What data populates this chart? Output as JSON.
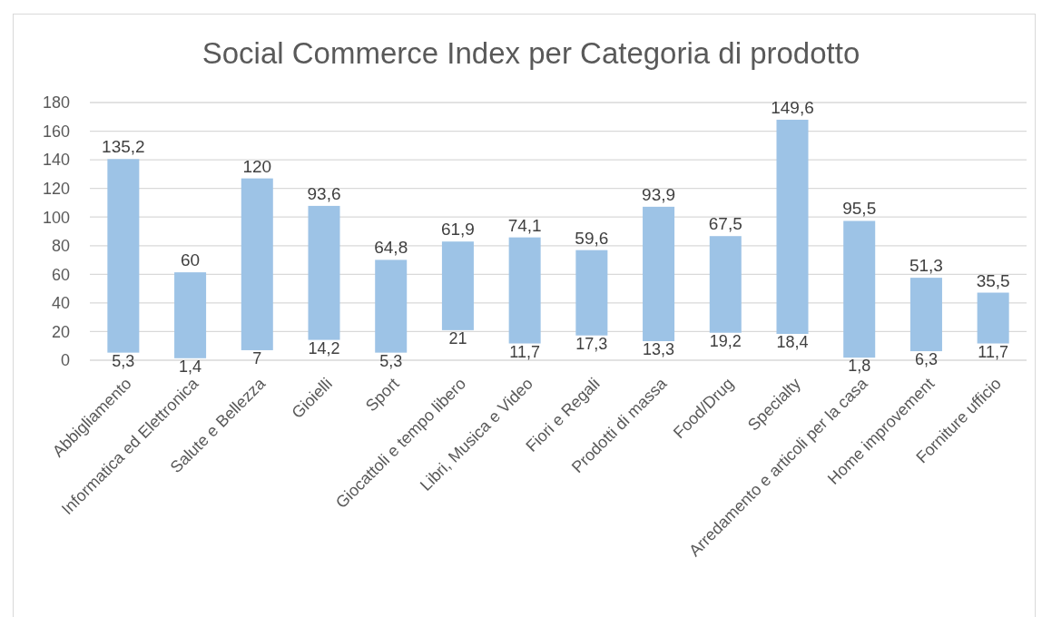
{
  "chart_data": {
    "type": "bar",
    "title": "Social Commerce Index per Categoria di prodotto",
    "categories": [
      "Abbigliamento",
      "Informatica ed Elettronica",
      "Salute e Bellezza",
      "Gioielli",
      "Sport",
      "Giocattoli e tempo libero",
      "Libri, Musica e Video",
      "Fiori e Regali",
      "Prodotti di massa",
      "Food/Drug",
      "Specialty",
      "Arredamento e articoli per la casa",
      "Home improvement",
      "Forniture ufficio"
    ],
    "values": [
      135.2,
      60,
      120,
      93.6,
      64.8,
      61.9,
      74.1,
      59.6,
      93.9,
      67.5,
      149.6,
      95.5,
      51.3,
      35.5
    ],
    "value_labels": [
      "135,2",
      "60",
      "120",
      "93,6",
      "64,8",
      "61,9",
      "74,1",
      "59,6",
      "93,9",
      "67,5",
      "149,6",
      "95,5",
      "51,3",
      "35,5"
    ],
    "base": [
      5.3,
      1.4,
      7,
      14.2,
      5.3,
      21,
      11.7,
      17.3,
      13.3,
      19.2,
      18.4,
      1.8,
      6.3,
      11.7
    ],
    "annotations": [
      {
        "text": "5,3",
        "x": "Abbigliamento",
        "y": 5.3
      },
      {
        "text": "1,4",
        "x": "Informatica ed Elettronica",
        "y": 1.4
      },
      {
        "text": "7",
        "x": "Salute e Bellezza",
        "y": 7
      },
      {
        "text": "14,2",
        "x": "Gioielli",
        "y": 14.2
      },
      {
        "text": "5,3",
        "x": "Sport",
        "y": 5.3
      },
      {
        "text": "21",
        "x": "Giocattoli e tempo libero",
        "y": 21
      },
      {
        "text": "11,7",
        "x": "Libri, Musica e Video",
        "y": 11.7
      },
      {
        "text": "17,3",
        "x": "Fiori e Regali",
        "y": 17.3
      },
      {
        "text": "13,3",
        "x": "Prodotti di massa",
        "y": 13.3
      },
      {
        "text": "19,2",
        "x": "Food/Drug",
        "y": 19.2
      },
      {
        "text": "18,4",
        "x": "Specialty",
        "y": 18.4
      },
      {
        "text": "1,8",
        "x": "Arredamento e articoli per la casa",
        "y": 1.8
      },
      {
        "text": "6,3",
        "x": "Home improvement",
        "y": 6.3
      },
      {
        "text": "11,7",
        "x": "Forniture ufficio",
        "y": 11.7
      }
    ],
    "color": "#9dc3e6",
    "ylim": [
      0,
      180
    ],
    "yticks": [
      0,
      20,
      40,
      60,
      80,
      100,
      120,
      140,
      160,
      180
    ],
    "grid": "y"
  }
}
